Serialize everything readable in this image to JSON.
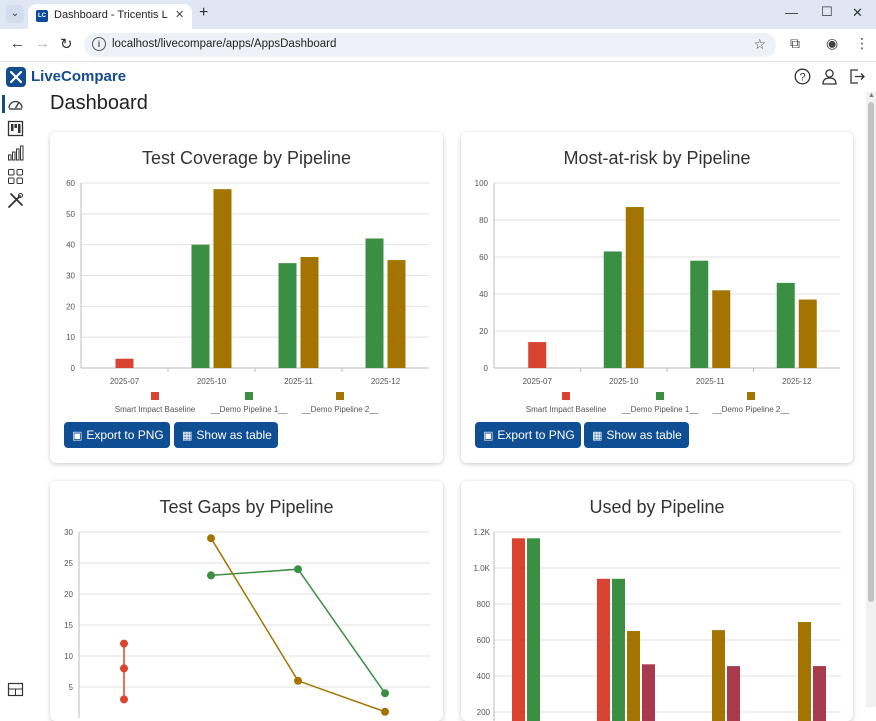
{
  "browser": {
    "tab_title": "Dashboard - Tricentis LiveCompare",
    "favicon_text": "LC",
    "url": "localhost/livecompare/apps/AppsDashboard"
  },
  "app": {
    "name": "LiveCompare",
    "page_title": "Dashboard",
    "brand_color": "#134c8f"
  },
  "buttons": {
    "export_png": "Export to PNG",
    "show_table": "Show as table"
  },
  "colors": {
    "red": "#d9432f",
    "green": "#3a8f43",
    "gold": "#a47400",
    "crimson": "#a83a4d"
  },
  "charts": {
    "coverage": {
      "title": "Test Coverage by Pipeline",
      "legend": [
        "Smart Impact Baseline",
        "__Demo Pipeline 1__",
        "__Demo Pipeline 2__"
      ]
    },
    "risk": {
      "title": "Most-at-risk by Pipeline",
      "legend": [
        "Smart Impact Baseline",
        "__Demo Pipeline 1__",
        "__Demo Pipeline 2__"
      ]
    },
    "gaps": {
      "title": "Test Gaps by Pipeline"
    },
    "used": {
      "title": "Used by Pipeline"
    }
  },
  "chart_data": [
    {
      "type": "bar",
      "title": "Test Coverage by Pipeline",
      "categories": [
        "2025-07",
        "2025-10",
        "2025-11",
        "2025-12"
      ],
      "ylim": [
        0,
        60
      ],
      "yticks": [
        "0",
        "10",
        "20",
        "30",
        "40",
        "50",
        "60"
      ],
      "series": [
        {
          "name": "Smart Impact Baseline",
          "values": [
            3,
            null,
            null,
            null
          ]
        },
        {
          "name": "__Demo Pipeline 1__",
          "values": [
            null,
            40,
            34,
            42
          ]
        },
        {
          "name": "__Demo Pipeline 2__",
          "values": [
            null,
            58,
            36,
            35
          ]
        }
      ],
      "legend": "bottom",
      "grid": true
    },
    {
      "type": "bar",
      "title": "Most-at-risk by Pipeline",
      "categories": [
        "2025-07",
        "2025-10",
        "2025-11",
        "2025-12"
      ],
      "ylim": [
        0,
        100
      ],
      "yticks": [
        "0",
        "20",
        "40",
        "60",
        "80",
        "100"
      ],
      "series": [
        {
          "name": "Smart Impact Baseline",
          "values": [
            14,
            null,
            null,
            null
          ]
        },
        {
          "name": "__Demo Pipeline 1__",
          "values": [
            null,
            63,
            58,
            46
          ]
        },
        {
          "name": "__Demo Pipeline 2__",
          "values": [
            null,
            87,
            42,
            37
          ]
        }
      ],
      "legend": "bottom",
      "grid": true
    },
    {
      "type": "line",
      "title": "Test Gaps by Pipeline",
      "ylim": [
        0,
        30
      ],
      "yticks": [
        "5",
        "10",
        "15",
        "20",
        "25",
        "30"
      ],
      "series": [
        {
          "name": "",
          "color": "red",
          "points": [
            [
              0,
              3
            ],
            [
              0,
              8
            ],
            [
              0,
              12
            ]
          ]
        },
        {
          "name": "",
          "color": "green",
          "points": [
            [
              1,
              23
            ],
            [
              2,
              24
            ],
            [
              3,
              4
            ]
          ]
        },
        {
          "name": "",
          "color": "gold",
          "points": [
            [
              1,
              29
            ],
            [
              2,
              6
            ],
            [
              3,
              1
            ]
          ]
        }
      ],
      "grid": true
    },
    {
      "type": "bar",
      "title": "Used by Pipeline",
      "ylim": [
        0,
        1200
      ],
      "yticks": [
        "200",
        "400",
        "600",
        "800",
        "1.0K",
        "1.2K"
      ],
      "series": [
        {
          "name": "",
          "color": "red",
          "values": [
            1165,
            940,
            null,
            null
          ]
        },
        {
          "name": "",
          "color": "green",
          "values": [
            1165,
            940,
            null,
            null
          ]
        },
        {
          "name": "",
          "color": "gold",
          "values": [
            null,
            650,
            655,
            700
          ]
        },
        {
          "name": "",
          "color": "crimson",
          "values": [
            null,
            465,
            455,
            455
          ]
        }
      ],
      "grid": true
    }
  ]
}
